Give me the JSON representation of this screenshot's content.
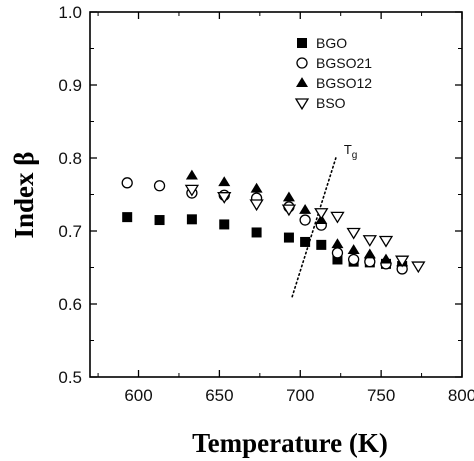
{
  "chart_data": {
    "type": "scatter",
    "xlabel": "Temperature (K)",
    "ylabel": "Index β",
    "xlim": [
      570,
      800
    ],
    "ylim": [
      0.5,
      1.0
    ],
    "xticks": [
      600,
      650,
      700,
      750,
      800
    ],
    "yticks": [
      0.5,
      0.6,
      0.7,
      0.8,
      0.9,
      1.0
    ],
    "xtick_labels": [
      "600",
      "650",
      "700",
      "750",
      "800"
    ],
    "ytick_labels": [
      "0.5",
      "0.6",
      "0.7",
      "0.8",
      "0.9",
      "1.0"
    ],
    "grid": false,
    "legend_position": "top-right",
    "series": [
      {
        "name": "BGO",
        "marker": "filled-square",
        "color": "#000000",
        "points": [
          [
            593,
            0.719
          ],
          [
            613,
            0.715
          ],
          [
            633,
            0.716
          ],
          [
            653,
            0.709
          ],
          [
            673,
            0.698
          ],
          [
            693,
            0.691
          ],
          [
            703,
            0.685
          ],
          [
            713,
            0.681
          ],
          [
            723,
            0.661
          ],
          [
            733,
            0.658
          ],
          [
            743,
            0.657
          ],
          [
            753,
            0.655
          ],
          [
            763,
            0.652
          ]
        ]
      },
      {
        "name": "BGSO21",
        "marker": "open-circle",
        "color": "#000000",
        "points": [
          [
            593,
            0.766
          ],
          [
            613,
            0.762
          ],
          [
            633,
            0.752
          ],
          [
            653,
            0.749
          ],
          [
            673,
            0.745
          ],
          [
            693,
            0.733
          ],
          [
            703,
            0.715
          ],
          [
            713,
            0.708
          ],
          [
            723,
            0.67
          ],
          [
            733,
            0.661
          ],
          [
            743,
            0.658
          ],
          [
            753,
            0.655
          ],
          [
            763,
            0.648
          ]
        ]
      },
      {
        "name": "BGSO12",
        "marker": "filled-triangle-up",
        "color": "#000000",
        "points": [
          [
            633,
            0.776
          ],
          [
            653,
            0.767
          ],
          [
            673,
            0.758
          ],
          [
            693,
            0.746
          ],
          [
            703,
            0.729
          ],
          [
            713,
            0.715
          ],
          [
            723,
            0.682
          ],
          [
            733,
            0.674
          ],
          [
            743,
            0.668
          ],
          [
            753,
            0.661
          ],
          [
            763,
            0.657
          ]
        ]
      },
      {
        "name": "BSO",
        "marker": "open-triangle-down",
        "color": "#000000",
        "points": [
          [
            633,
            0.757
          ],
          [
            653,
            0.747
          ],
          [
            673,
            0.737
          ],
          [
            693,
            0.73
          ],
          [
            713,
            0.725
          ],
          [
            723,
            0.72
          ],
          [
            733,
            0.698
          ],
          [
            743,
            0.688
          ],
          [
            753,
            0.687
          ],
          [
            763,
            0.66
          ],
          [
            773,
            0.652
          ]
        ]
      }
    ],
    "annotations": [
      {
        "label": "T",
        "subscript": "g",
        "line": [
          [
            695,
            0.61
          ],
          [
            722,
            0.8
          ]
        ],
        "style": "dotted"
      }
    ]
  }
}
